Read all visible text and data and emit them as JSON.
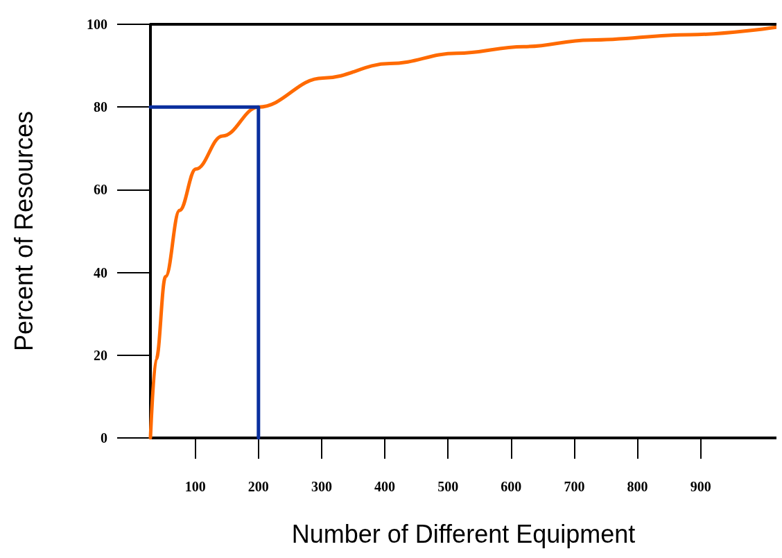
{
  "chart_data": {
    "type": "line",
    "xlabel": "Number of Different Equipment",
    "ylabel": "Percent of Resources",
    "xlim": [
      29,
      1020
    ],
    "ylim": [
      0,
      100
    ],
    "xticks": [
      100,
      200,
      300,
      400,
      500,
      600,
      700,
      800,
      900
    ],
    "yticks": [
      0,
      20,
      40,
      60,
      80,
      100
    ],
    "grid": false,
    "marker": "none",
    "line_style": "solid",
    "series": [
      {
        "color": "#ff6a00",
        "x": [
          29,
          38,
          53,
          75,
          101,
          143,
          200,
          302,
          408,
          514,
          620,
          725,
          884,
          1020
        ],
        "values": [
          0,
          19,
          39,
          55,
          65,
          73,
          80,
          87,
          90.5,
          93,
          94.6,
          96.2,
          97.5,
          99.3
        ]
      },
      {
        "color": "#0a2f9e",
        "x": [
          29,
          200,
          200
        ],
        "values": [
          80,
          80,
          0
        ]
      }
    ]
  }
}
